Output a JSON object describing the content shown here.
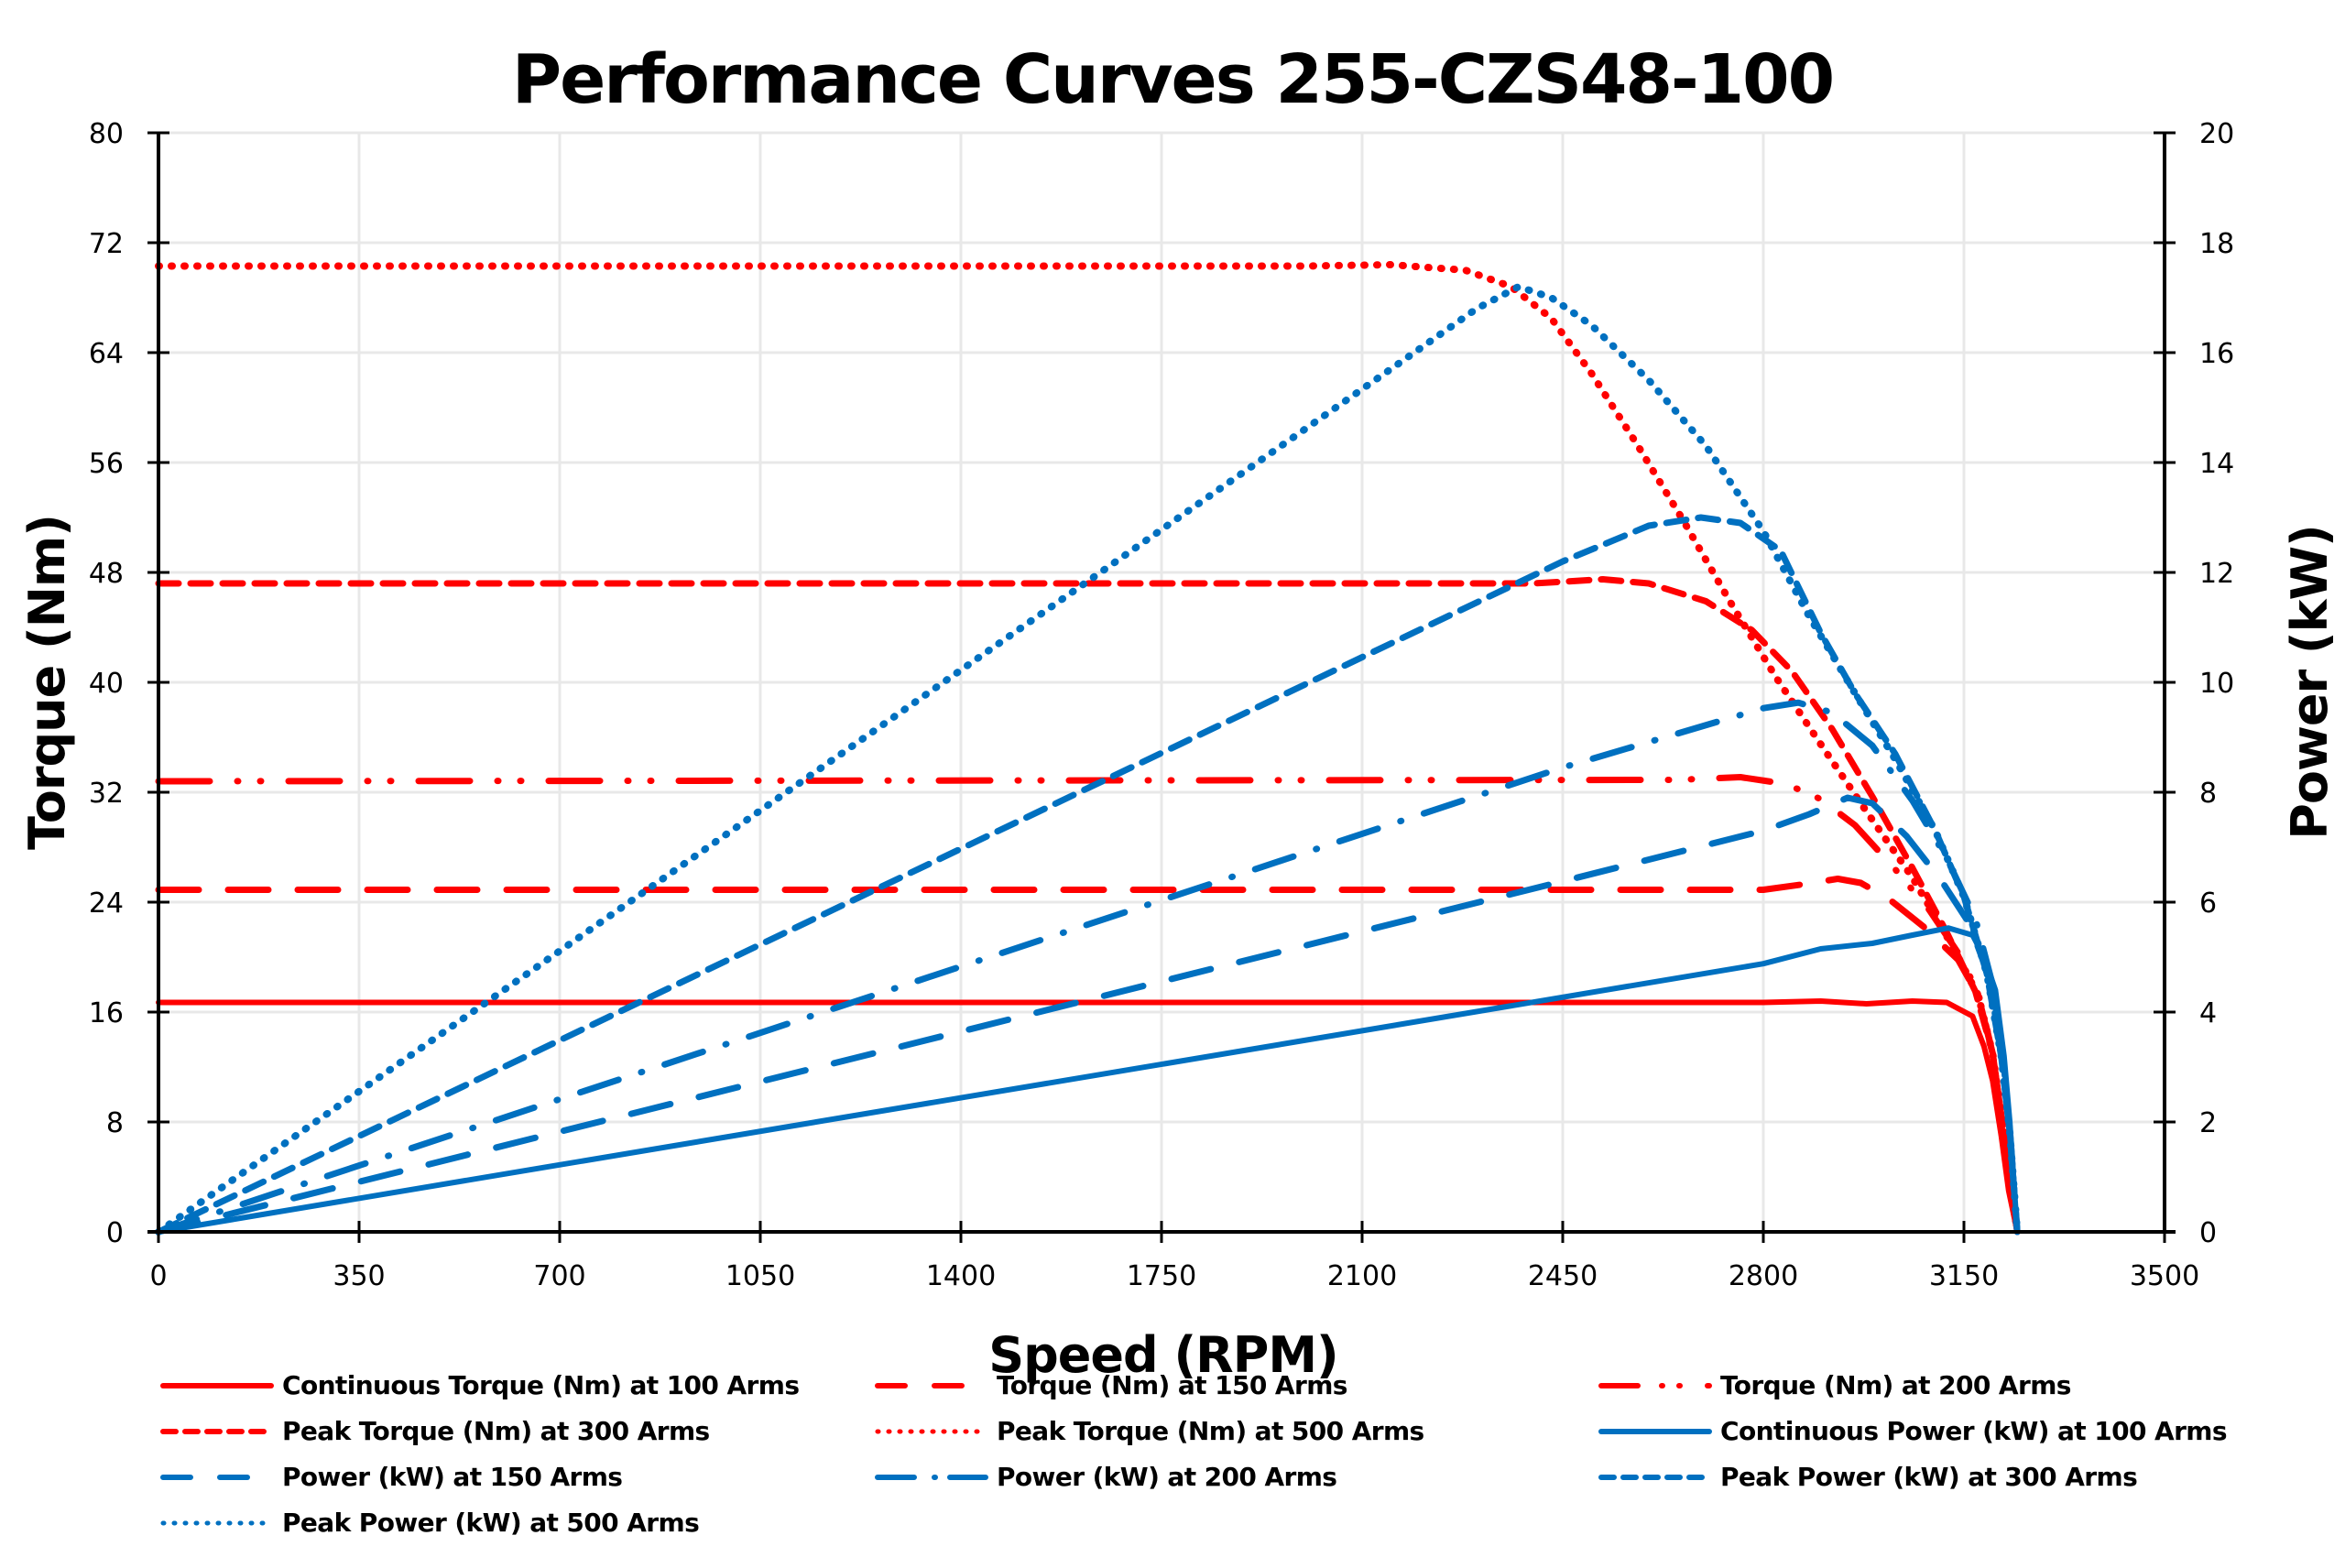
{
  "chart_data": {
    "type": "line",
    "title": "Performance Curves 255-CZS48-100",
    "xlabel": "Speed (RPM)",
    "ylabel": "Torque (Nm)",
    "y2label": "Power (kW)",
    "xlim": [
      0,
      3500
    ],
    "ylim": [
      0,
      80
    ],
    "y2lim": [
      0,
      20
    ],
    "xticks": [
      0,
      350,
      700,
      1050,
      1400,
      1750,
      2100,
      2450,
      2800,
      3150,
      3500
    ],
    "yticks": [
      0,
      8,
      16,
      24,
      32,
      40,
      48,
      56,
      64,
      72,
      80
    ],
    "y2ticks": [
      0,
      2,
      4,
      6,
      8,
      10,
      12,
      14,
      16,
      18,
      20
    ],
    "grid": true,
    "legend_position": "bottom",
    "colors": {
      "torque": "#ff0000",
      "power": "#0070c0"
    },
    "series": [
      {
        "name": "Continuous Torque (Nm) at 100 Arms",
        "axis": "left",
        "color": "#ff0000",
        "style": "solid",
        "points": [
          [
            0,
            16.7
          ],
          [
            2800,
            16.7
          ],
          [
            2900,
            16.8
          ],
          [
            2980,
            16.6
          ],
          [
            3060,
            16.8
          ],
          [
            3120,
            16.7
          ],
          [
            3165,
            15.7
          ],
          [
            3185,
            13.5
          ],
          [
            3200,
            11
          ],
          [
            3215,
            7
          ],
          [
            3228,
            3
          ],
          [
            3243,
            0
          ]
        ]
      },
      {
        "name": "Torque (Nm) at 150 Arms",
        "axis": "left",
        "color": "#ff0000",
        "style": "dash",
        "points": [
          [
            0,
            24.9
          ],
          [
            2800,
            24.9
          ],
          [
            2870,
            25.3
          ],
          [
            2930,
            25.7
          ],
          [
            2970,
            25.4
          ],
          [
            3020,
            24.2
          ],
          [
            3080,
            22.2
          ],
          [
            3140,
            19.8
          ],
          [
            3175,
            17.2
          ],
          [
            3200,
            13
          ],
          [
            3220,
            7
          ],
          [
            3243,
            0
          ]
        ]
      },
      {
        "name": "Torque (Nm) at 200 Arms",
        "axis": "left",
        "color": "#ff0000",
        "style": "dashdotdot",
        "points": [
          [
            0,
            32.8
          ],
          [
            2650,
            32.9
          ],
          [
            2760,
            33.1
          ],
          [
            2840,
            32.6
          ],
          [
            2900,
            31.5
          ],
          [
            2960,
            29.6
          ],
          [
            3030,
            26.4
          ],
          [
            3090,
            23.4
          ],
          [
            3140,
            20.3
          ],
          [
            3175,
            17.4
          ],
          [
            3200,
            13
          ],
          [
            3220,
            7
          ],
          [
            3243,
            0
          ]
        ]
      },
      {
        "name": "Peak Torque (Nm) at 300 Arms",
        "axis": "left",
        "color": "#ff0000",
        "style": "shortdash",
        "points": [
          [
            0,
            47.2
          ],
          [
            2400,
            47.2
          ],
          [
            2520,
            47.5
          ],
          [
            2600,
            47.2
          ],
          [
            2700,
            45.9
          ],
          [
            2780,
            43.8
          ],
          [
            2850,
            40.8
          ],
          [
            2920,
            36.6
          ],
          [
            2990,
            31.7
          ],
          [
            3060,
            26.5
          ],
          [
            3120,
            21.8
          ],
          [
            3170,
            17.5
          ],
          [
            3200,
            13
          ],
          [
            3220,
            7
          ],
          [
            3243,
            0
          ]
        ]
      },
      {
        "name": "Peak Torque (Nm) at 500 Arms",
        "axis": "left",
        "color": "#ff0000",
        "style": "dot",
        "points": [
          [
            0,
            70.3
          ],
          [
            2000,
            70.3
          ],
          [
            2150,
            70.4
          ],
          [
            2280,
            70.0
          ],
          [
            2360,
            68.8
          ],
          [
            2430,
            66.5
          ],
          [
            2500,
            62.5
          ],
          [
            2580,
            57.3
          ],
          [
            2660,
            51.8
          ],
          [
            2740,
            46.0
          ],
          [
            2820,
            40.5
          ],
          [
            2900,
            35.5
          ],
          [
            2980,
            30.6
          ],
          [
            3060,
            25.8
          ],
          [
            3130,
            20.8
          ],
          [
            3175,
            17.2
          ],
          [
            3200,
            13
          ],
          [
            3220,
            7
          ],
          [
            3243,
            0
          ]
        ]
      },
      {
        "name": "Continuous Power (kW) at 100 Arms",
        "axis": "right",
        "color": "#0070c0",
        "style": "solid",
        "points": [
          [
            0,
            0
          ],
          [
            2800,
            4.88
          ],
          [
            2900,
            5.15
          ],
          [
            2990,
            5.25
          ],
          [
            3060,
            5.4
          ],
          [
            3123,
            5.53
          ],
          [
            3165,
            5.4
          ],
          [
            3185,
            5.0
          ],
          [
            3205,
            4.4
          ],
          [
            3220,
            3.2
          ],
          [
            3230,
            2.0
          ],
          [
            3243,
            0
          ]
        ]
      },
      {
        "name": "Power (kW) at 150 Arms",
        "axis": "right",
        "color": "#0070c0",
        "style": "dash",
        "points": [
          [
            0,
            0
          ],
          [
            2450,
            6.38
          ],
          [
            2800,
            7.3
          ],
          [
            2880,
            7.6
          ],
          [
            2947,
            7.9
          ],
          [
            2990,
            7.8
          ],
          [
            3050,
            7.2
          ],
          [
            3110,
            6.4
          ],
          [
            3160,
            5.6
          ],
          [
            3195,
            4.6
          ],
          [
            3215,
            3.2
          ],
          [
            3230,
            1.8
          ],
          [
            3243,
            0
          ]
        ]
      },
      {
        "name": "Power (kW) at 200 Arms",
        "axis": "right",
        "color": "#0070c0",
        "style": "dashdot",
        "points": [
          [
            0,
            0
          ],
          [
            2450,
            8.45
          ],
          [
            2800,
            9.53
          ],
          [
            2861,
            9.63
          ],
          [
            2920,
            9.45
          ],
          [
            2990,
            8.85
          ],
          [
            3060,
            7.85
          ],
          [
            3120,
            6.8
          ],
          [
            3170,
            5.7
          ],
          [
            3200,
            4.5
          ],
          [
            3220,
            3.0
          ],
          [
            3232,
            1.6
          ],
          [
            3243,
            0
          ]
        ]
      },
      {
        "name": "Peak Power (kW) at 300 Arms",
        "axis": "right",
        "color": "#0070c0",
        "style": "shortdash",
        "points": [
          [
            0,
            0
          ],
          [
            2450,
            12.2
          ],
          [
            2600,
            12.85
          ],
          [
            2691,
            13.0
          ],
          [
            2760,
            12.9
          ],
          [
            2830,
            12.4
          ],
          [
            2900,
            10.9
          ],
          [
            2960,
            9.8
          ],
          [
            3030,
            8.7
          ],
          [
            3100,
            7.3
          ],
          [
            3150,
            6.1
          ],
          [
            3190,
            4.7
          ],
          [
            3215,
            3.2
          ],
          [
            3230,
            1.8
          ],
          [
            3243,
            0
          ]
        ]
      },
      {
        "name": "Peak Power (kW) at 500 Arms",
        "axis": "right",
        "color": "#0070c0",
        "style": "dot",
        "points": [
          [
            0,
            0
          ],
          [
            2150,
            15.7
          ],
          [
            2300,
            16.8
          ],
          [
            2373,
            17.2
          ],
          [
            2430,
            17.0
          ],
          [
            2500,
            16.5
          ],
          [
            2600,
            15.5
          ],
          [
            2700,
            14.3
          ],
          [
            2800,
            12.75
          ],
          [
            2880,
            11.2
          ],
          [
            2960,
            9.8
          ],
          [
            3030,
            8.6
          ],
          [
            3100,
            7.3
          ],
          [
            3150,
            6.1
          ],
          [
            3190,
            4.7
          ],
          [
            3215,
            3.2
          ],
          [
            3230,
            1.8
          ],
          [
            3243,
            0
          ]
        ]
      }
    ]
  }
}
